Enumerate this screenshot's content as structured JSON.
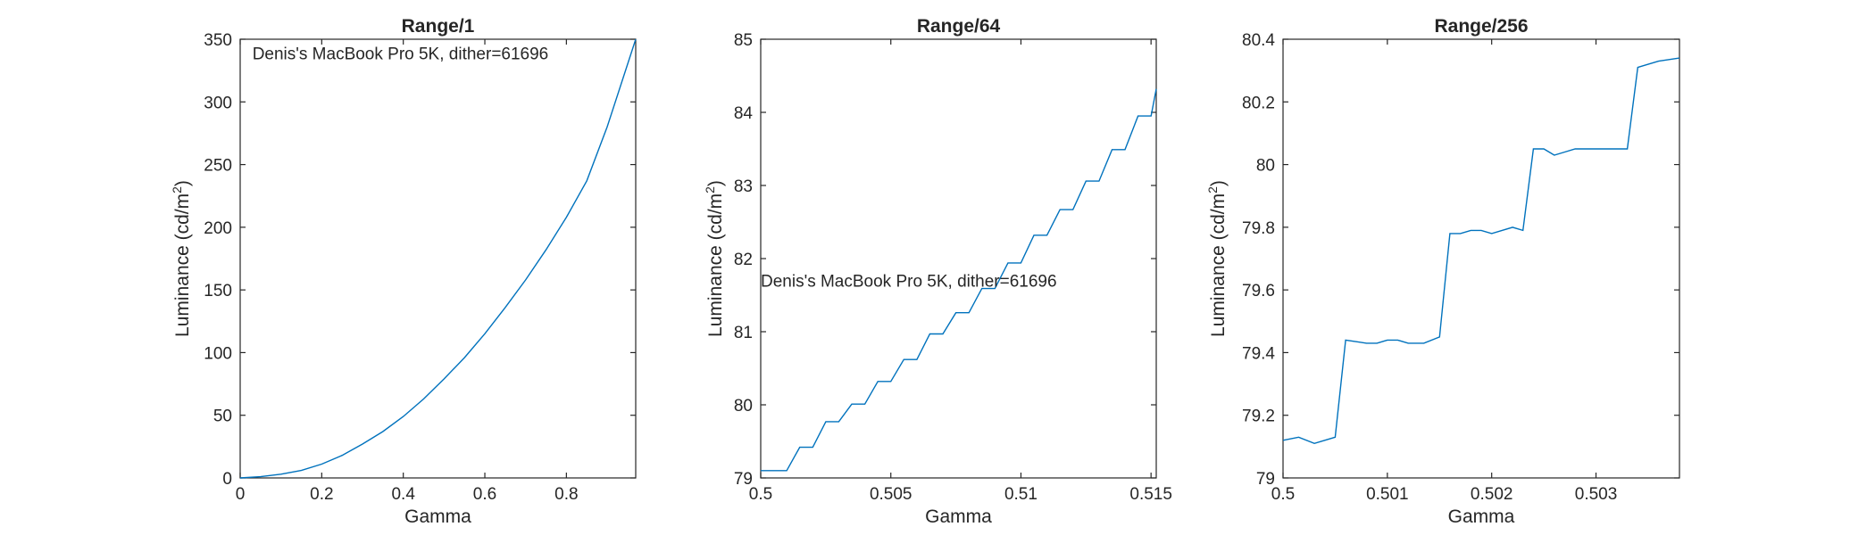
{
  "chart_data": [
    {
      "type": "line",
      "title": "Range/1",
      "xlabel": "Gamma",
      "ylabel": "Luminance (cd/m",
      "ylabel_sup": "2",
      "ylabel_close": ")",
      "xlim": [
        0,
        0.97
      ],
      "ylim": [
        0,
        350
      ],
      "xticks": [
        0,
        0.2,
        0.4,
        0.6,
        0.8
      ],
      "xtick_labels": [
        "0",
        "0.2",
        "0.4",
        "0.6",
        "0.8"
      ],
      "yticks": [
        0,
        50,
        100,
        150,
        200,
        250,
        300,
        350
      ],
      "ytick_labels": [
        "0",
        "50",
        "100",
        "150",
        "200",
        "250",
        "300",
        "350"
      ],
      "annotation": {
        "text": "Denis's MacBook Pro 5K, dither=61696",
        "x": 0.03,
        "y": 339
      },
      "series": [
        {
          "x": [
            0,
            0.05,
            0.1,
            0.15,
            0.2,
            0.25,
            0.3,
            0.35,
            0.4,
            0.45,
            0.5,
            0.55,
            0.6,
            0.65,
            0.7,
            0.75,
            0.8,
            0.85,
            0.9,
            0.97
          ],
          "y": [
            0,
            1,
            3,
            6,
            11,
            18,
            27,
            37,
            49,
            63,
            79,
            96,
            115,
            136,
            158,
            182,
            208,
            237,
            280,
            350
          ]
        }
      ]
    },
    {
      "type": "line",
      "title": "Range/64",
      "xlabel": "Gamma",
      "ylabel": "Luminance (cd/m",
      "ylabel_sup": "2",
      "ylabel_close": ")",
      "xlim": [
        0.5,
        0.5152
      ],
      "ylim": [
        79,
        85
      ],
      "xticks": [
        0.5,
        0.505,
        0.51,
        0.515
      ],
      "xtick_labels": [
        "0.5",
        "0.505",
        "0.51",
        "0.515"
      ],
      "yticks": [
        79,
        80,
        81,
        82,
        83,
        84,
        85
      ],
      "ytick_labels": [
        "79",
        "80",
        "81",
        "82",
        "83",
        "84",
        "85"
      ],
      "annotation": {
        "text": "Denis's MacBook Pro 5K, dither=61696",
        "x": 0.5,
        "y": 81.7
      },
      "series": [
        {
          "x": [
            0.5,
            0.501,
            0.5015,
            0.502,
            0.5025,
            0.503,
            0.5035,
            0.504,
            0.5045,
            0.505,
            0.5055,
            0.506,
            0.5065,
            0.507,
            0.5075,
            0.508,
            0.5085,
            0.509,
            0.5095,
            0.51,
            0.5105,
            0.511,
            0.5115,
            0.512,
            0.5125,
            0.513,
            0.5135,
            0.514,
            0.5145,
            0.515,
            0.5152
          ],
          "y": [
            79.1,
            79.1,
            79.42,
            79.42,
            79.77,
            79.77,
            80.01,
            80.01,
            80.32,
            80.32,
            80.62,
            80.62,
            80.97,
            80.97,
            81.26,
            81.26,
            81.59,
            81.59,
            81.94,
            81.94,
            82.32,
            82.32,
            82.67,
            82.67,
            83.06,
            83.06,
            83.49,
            83.49,
            83.95,
            83.95,
            84.32
          ]
        }
      ]
    },
    {
      "type": "line",
      "title": "Range/256",
      "xlabel": "Gamma",
      "ylabel": "Luminance (cd/m",
      "ylabel_sup": "2",
      "ylabel_close": ")",
      "xlim": [
        0.5,
        0.5038
      ],
      "ylim": [
        79,
        80.4
      ],
      "xticks": [
        0.5,
        0.501,
        0.502,
        0.503
      ],
      "xtick_labels": [
        "0.5",
        "0.501",
        "0.502",
        "0.503"
      ],
      "yticks": [
        79,
        79.2,
        79.4,
        79.6,
        79.8,
        80,
        80.2,
        80.4
      ],
      "ytick_labels": [
        "79",
        "79.2",
        "79.4",
        "79.6",
        "79.8",
        "80",
        "80.2",
        "80.4"
      ],
      "series": [
        {
          "x": [
            0.5,
            0.50015,
            0.5003,
            0.5004,
            0.5005,
            0.5006,
            0.5008,
            0.50085,
            0.5009,
            0.501,
            0.5011,
            0.5012,
            0.50135,
            0.5015,
            0.5016,
            0.5017,
            0.5018,
            0.5019,
            0.502,
            0.5022,
            0.5023,
            0.5024,
            0.5025,
            0.5026,
            0.5027,
            0.5028,
            0.5029,
            0.503,
            0.5031,
            0.5032,
            0.5033,
            0.5034,
            0.5035,
            0.5036,
            0.5038
          ],
          "y": [
            79.12,
            79.13,
            79.11,
            79.12,
            79.13,
            79.44,
            79.43,
            79.43,
            79.43,
            79.44,
            79.44,
            79.43,
            79.43,
            79.45,
            79.78,
            79.78,
            79.79,
            79.79,
            79.78,
            79.8,
            79.79,
            80.05,
            80.05,
            80.03,
            80.04,
            80.05,
            80.05,
            80.05,
            80.05,
            80.05,
            80.05,
            80.31,
            80.32,
            80.33,
            80.34
          ]
        }
      ]
    }
  ]
}
